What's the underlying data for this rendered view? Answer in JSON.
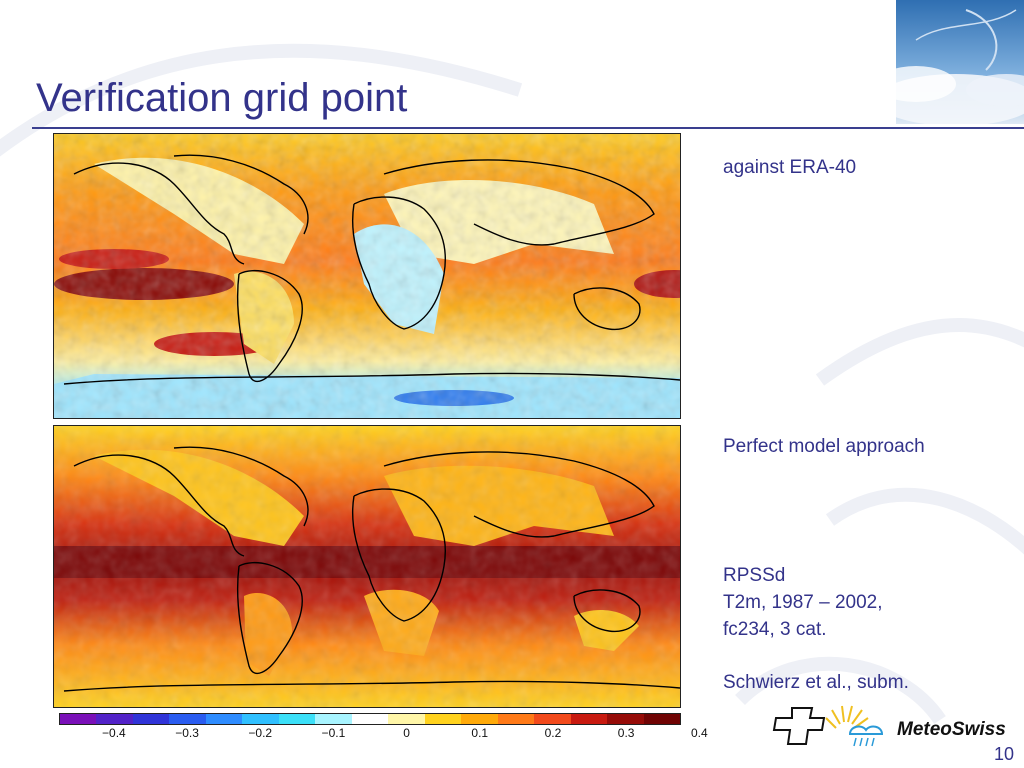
{
  "slide": {
    "title": "Verification grid point",
    "page_number": "10"
  },
  "maps": [
    {
      "name": "RPSSd against ERA-40"
    },
    {
      "name": "RPSSd perfect model approach"
    }
  ],
  "colorbar": {
    "colors": [
      "#7a10b8",
      "#5222c8",
      "#3034d8",
      "#2a5cf0",
      "#2e8cff",
      "#30c0ff",
      "#3ce0f8",
      "#a8f4ff",
      "#ffffff",
      "#fff6a8",
      "#ffd21e",
      "#ffaa0a",
      "#ff7a18",
      "#f24a1c",
      "#c81a10",
      "#960c08",
      "#700404"
    ],
    "tick_labels": [
      "−0.4",
      "−0.3",
      "−0.2",
      "−0.1",
      "0",
      "0.1",
      "0.2",
      "0.3",
      "0.4"
    ]
  },
  "side_notes": {
    "era": "against ERA-40",
    "perfect": "Perfect model approach",
    "rpss_lines": [
      "RPSSd",
      "T2m, 1987 – 2002,",
      "fc234, 3 cat."
    ],
    "reference": "Schwierz et al., subm."
  },
  "logo": {
    "text": "MeteoSwiss"
  }
}
